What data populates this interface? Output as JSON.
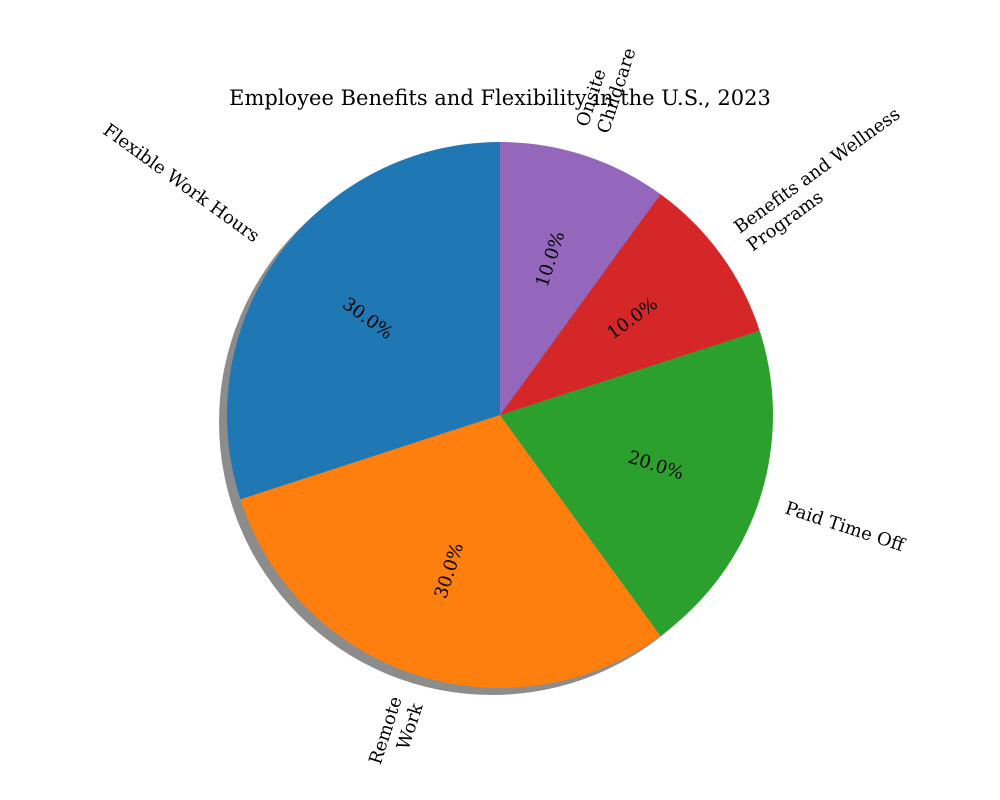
{
  "chart_data": {
    "type": "pie",
    "title": "Employee Benefits and Flexibility in the U.S., 2023",
    "categories": [
      "Flexible Work Hours",
      "Remote Work",
      "Paid Time Off",
      "Benefits and Wellness Programs",
      "Onsite Childcare"
    ],
    "label_lines": [
      [
        "Flexible Work Hours"
      ],
      [
        "Remote",
        "Work"
      ],
      [
        "Paid Time Off"
      ],
      [
        "Benefits and Wellness",
        "Programs"
      ],
      [
        "Onsite",
        "Childcare"
      ]
    ],
    "values": [
      30,
      30,
      20,
      10,
      10
    ],
    "percent_labels": [
      "30.0%",
      "30.0%",
      "20.0%",
      "10.0%",
      "10.0%"
    ],
    "colors": [
      "#1f77b4",
      "#ff7f0e",
      "#2ca02c",
      "#d62728",
      "#9467bd"
    ],
    "start_angle_deg": 90,
    "direction": "counterclockwise",
    "shadow": true,
    "label_rotation": "radial"
  }
}
